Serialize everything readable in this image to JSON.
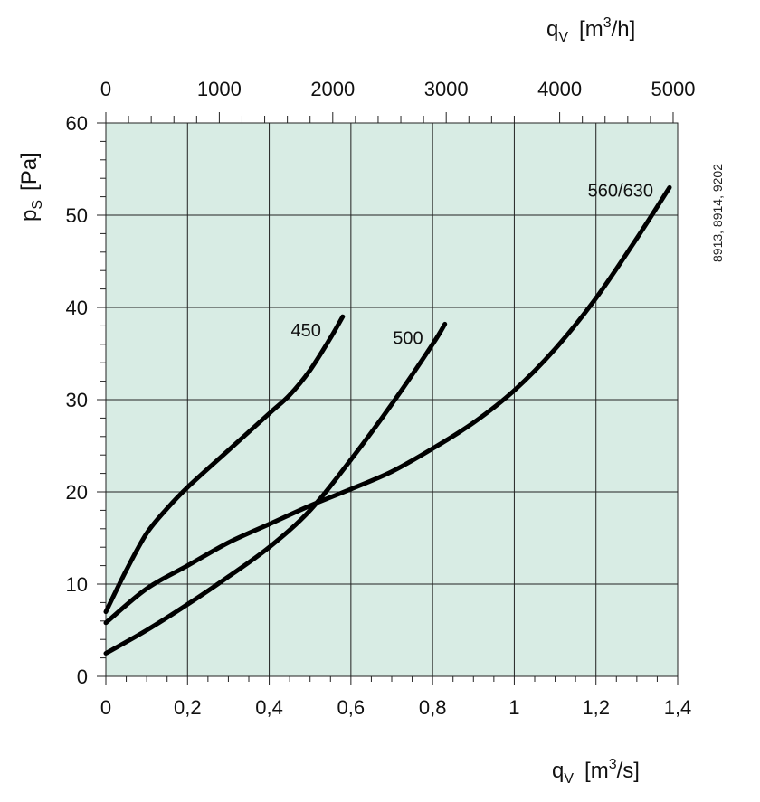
{
  "chart_data": {
    "type": "line",
    "background_color": "#d8ece4",
    "grid_color": "#222222",
    "line_color": "#000000",
    "grid": true,
    "x_axis": {
      "units": "m3/s",
      "range": [
        0,
        1.4
      ],
      "ticks": [
        0,
        0.2,
        0.4,
        0.6,
        0.8,
        1,
        1.2,
        1.4
      ],
      "tick_labels": [
        "0",
        "0,2",
        "0,4",
        "0,6",
        "0,8",
        "1",
        "1,2",
        "1,4"
      ],
      "label_symbol": "q",
      "label_subscript": "V",
      "label_unit_prefix": "[m",
      "label_unit_sup": "3",
      "label_unit_suffix": "/s]"
    },
    "x2_axis": {
      "units": "m3/h",
      "range": [
        0,
        5040
      ],
      "ticks": [
        0,
        1000,
        2000,
        3000,
        4000,
        5000
      ],
      "tick_labels": [
        "0",
        "1000",
        "2000",
        "3000",
        "4000",
        "5000"
      ],
      "label_symbol": "q",
      "label_subscript": "V",
      "label_unit_prefix": "[m",
      "label_unit_sup": "3",
      "label_unit_suffix": "/h]"
    },
    "y_axis": {
      "units": "Pa",
      "range": [
        0,
        60
      ],
      "ticks": [
        0,
        10,
        20,
        30,
        40,
        50,
        60
      ],
      "tick_labels": [
        "0",
        "10",
        "20",
        "30",
        "40",
        "50",
        "60"
      ],
      "label_symbol": "p",
      "label_subscript": "S",
      "label_unit": "[Pa]"
    },
    "side_note": "8913, 8914, 9202",
    "series": [
      {
        "name": "450",
        "x": [
          0,
          0.05,
          0.1,
          0.15,
          0.2,
          0.3,
          0.4,
          0.45,
          0.5,
          0.55,
          0.58
        ],
        "y": [
          7,
          11.5,
          15.5,
          18.2,
          20.5,
          24.5,
          28.5,
          30.5,
          33.2,
          36.7,
          39
        ]
      },
      {
        "name": "500",
        "x": [
          0,
          0.1,
          0.2,
          0.3,
          0.4,
          0.5,
          0.6,
          0.7,
          0.8,
          0.83
        ],
        "y": [
          2.5,
          5,
          7.8,
          10.8,
          14,
          18,
          23.5,
          29.5,
          36,
          38.2
        ]
      },
      {
        "name": "560/630",
        "x": [
          0,
          0.1,
          0.2,
          0.3,
          0.4,
          0.5,
          0.6,
          0.7,
          0.8,
          0.9,
          1.0,
          1.1,
          1.2,
          1.3,
          1.38
        ],
        "y": [
          5.8,
          9.5,
          12,
          14.5,
          16.5,
          18.5,
          20.3,
          22.2,
          24.7,
          27.5,
          31,
          35.5,
          41,
          47.5,
          53
        ]
      }
    ],
    "series_label_positions": [
      "left-of-end",
      "left-of-end",
      "left-of-end"
    ]
  }
}
